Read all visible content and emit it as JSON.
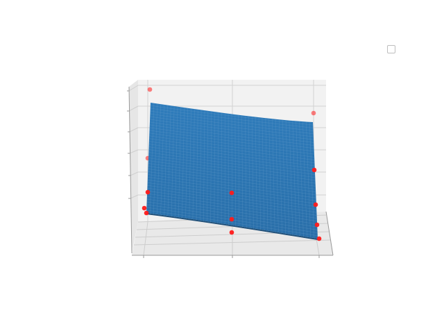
{
  "chart_data": {
    "type": "surface3d",
    "title": "",
    "xlabel": "",
    "ylabel": "",
    "zlabel": "",
    "colors": {
      "surface": "#2a74b1",
      "surface_mesh": "#8fb9dc",
      "points": "#ff1a1a",
      "pane": "#f2f2f2",
      "grid": "#c8c8c8"
    },
    "legend": {
      "placement": "top-right",
      "entries": [
        ""
      ]
    },
    "grid": true,
    "series": [
      {
        "kind": "surface"
      },
      {
        "kind": "scatter",
        "count": 17
      }
    ]
  }
}
